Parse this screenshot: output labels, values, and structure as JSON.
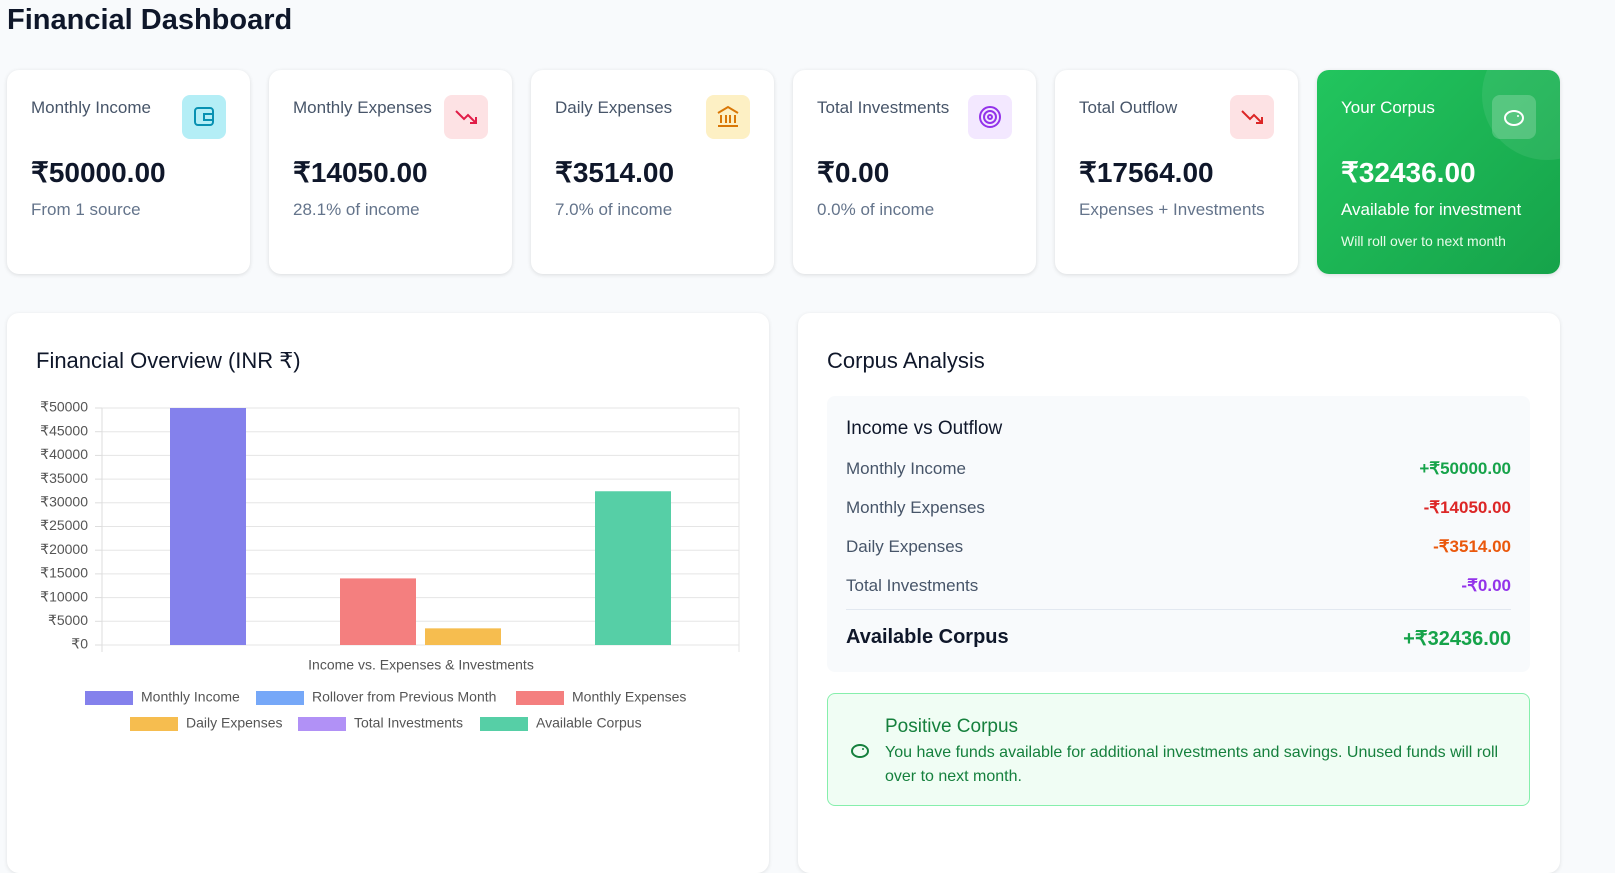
{
  "header": {
    "title": "Financial Dashboard"
  },
  "cards": [
    {
      "label": "Monthly Income",
      "value": "₹50000.00",
      "note": "From 1 source"
    },
    {
      "label": "Monthly Expenses",
      "value": "₹14050.00",
      "note": "28.1% of income"
    },
    {
      "label": "Daily Expenses",
      "value": "₹3514.00",
      "note": "7.0% of income"
    },
    {
      "label": "Total Investments",
      "value": "₹0.00",
      "note": "0.0% of income"
    },
    {
      "label": "Total Outflow",
      "value": "₹17564.00",
      "note": "Expenses + Investments"
    },
    {
      "label": "Your Corpus",
      "value": "₹32436.00",
      "note": "Available for investment",
      "detail": "Will roll over to next month"
    }
  ],
  "chart_data": {
    "type": "bar",
    "title": "Financial Overview (INR ₹)",
    "x_label": "Income vs. Expenses & Investments",
    "categories": [
      null
    ],
    "series": [
      {
        "name": "Monthly Income",
        "color": "#8481ec",
        "values": [
          50000
        ]
      },
      {
        "name": "Rollover from Previous Month",
        "color": "#76a8f8",
        "values": [
          0
        ]
      },
      {
        "name": "Monthly Expenses",
        "color": "#f47f7f",
        "values": [
          14050
        ]
      },
      {
        "name": "Daily Expenses",
        "color": "#f6bd4f",
        "values": [
          3514
        ]
      },
      {
        "name": "Total Investments",
        "color": "#b191f6",
        "values": [
          0
        ]
      },
      {
        "name": "Available Corpus",
        "color": "#56cfa6",
        "values": [
          32436
        ]
      }
    ],
    "ylim": [
      0,
      50000
    ],
    "yticks": [
      {
        "value": 0,
        "label": "₹0"
      },
      {
        "value": 5000,
        "label": "₹5000"
      },
      {
        "value": 10000,
        "label": "₹10000"
      },
      {
        "value": 15000,
        "label": "₹15000"
      },
      {
        "value": 20000,
        "label": "₹20000"
      },
      {
        "value": 25000,
        "label": "₹25000"
      },
      {
        "value": 30000,
        "label": "₹30000"
      },
      {
        "value": 35000,
        "label": "₹35000"
      },
      {
        "value": 40000,
        "label": "₹40000"
      },
      {
        "value": 45000,
        "label": "₹45000"
      },
      {
        "value": 50000,
        "label": "₹50000"
      }
    ],
    "grid": true
  },
  "corpus": {
    "title": "Corpus Analysis",
    "subtitle": "Income vs Outflow",
    "rows": [
      [
        "Monthly Income",
        "+₹50000.00"
      ],
      [
        "Monthly Expenses",
        "-₹14050.00"
      ],
      [
        "Daily Expenses",
        "-₹3514.00"
      ],
      [
        "Total Investments",
        "-₹0.00"
      ]
    ],
    "total": [
      "Available Corpus",
      "+₹32436.00"
    ],
    "note": {
      "title": "Positive Corpus",
      "text": "You have funds available for additional investments and savings. Unused funds will roll over to next month."
    }
  }
}
